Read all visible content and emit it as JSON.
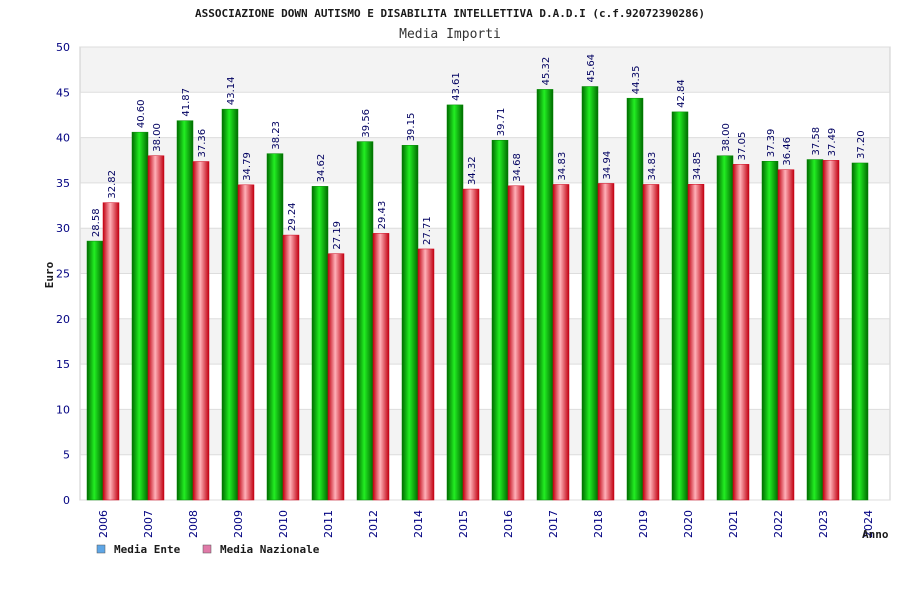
{
  "chart_data": {
    "type": "bar",
    "title": "ASSOCIAZIONE DOWN AUTISMO E DISABILITA INTELLETTIVA D.A.D.I (c.f.92072390286)",
    "subtitle": "Media Importi",
    "xlabel": "Anno",
    "ylabel": "Euro",
    "ylim": [
      0,
      50
    ],
    "yticks": [
      0,
      5,
      10,
      15,
      20,
      25,
      30,
      35,
      40,
      45,
      50
    ],
    "grid": true,
    "legend_position": "bottom-left",
    "categories": [
      "2006",
      "2007",
      "2008",
      "2009",
      "2010",
      "2011",
      "2012",
      "2014",
      "2015",
      "2016",
      "2017",
      "2018",
      "2019",
      "2020",
      "2021",
      "2022",
      "2023",
      "2024"
    ],
    "series": [
      {
        "name": "Media Ente",
        "color": "#00c000",
        "legend_color": "#5ea6e6",
        "values": [
          28.58,
          40.6,
          41.87,
          43.14,
          38.23,
          34.62,
          39.56,
          39.15,
          43.61,
          39.71,
          45.32,
          45.64,
          44.35,
          42.84,
          38.0,
          37.39,
          37.58,
          37.2
        ],
        "labels": [
          "28.58",
          "40.60",
          "41.87",
          "43.14",
          "38.23",
          "34.62",
          "39.56",
          "39.15",
          "43.61",
          "39.71",
          "45.32",
          "45.64",
          "44.35",
          "42.84",
          "38.00",
          "37.39",
          "37.58",
          "37.20"
        ]
      },
      {
        "name": "Media Nazionale",
        "color": "#e01020",
        "legend_color": "#e07aa8",
        "values": [
          32.82,
          38.0,
          37.36,
          34.79,
          29.24,
          27.19,
          29.43,
          27.71,
          34.32,
          34.68,
          34.83,
          34.94,
          34.83,
          34.85,
          37.05,
          36.46,
          37.49,
          null
        ],
        "labels": [
          "32.82",
          "38.00",
          "37.36",
          "34.79",
          "29.24",
          "27.19",
          "29.43",
          "27.71",
          "34.32",
          "34.68",
          "34.83",
          "34.94",
          "34.83",
          "34.85",
          "37.05",
          "36.46",
          "37.49",
          ""
        ]
      }
    ]
  }
}
